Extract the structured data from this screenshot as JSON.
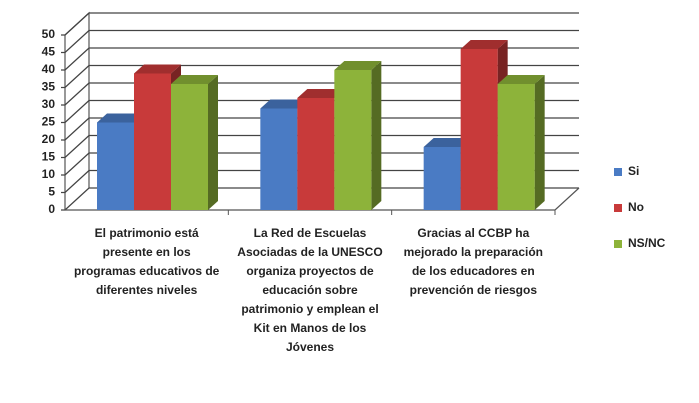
{
  "chart_data": {
    "type": "bar3d",
    "categories": [
      "El patrimonio está presente en los programas educativos de diferentes niveles",
      "La Red de Escuelas Asociadas de la UNESCO organiza proyectos de educación sobre patrimonio y emplean el Kit  en Manos de los Jóvenes",
      "Gracias al CCBP ha mejorado la preparación de los educadores en prevención de riesgos"
    ],
    "series": [
      {
        "name": "Si",
        "color": "#4a7bc4",
        "values": [
          25,
          29,
          18
        ]
      },
      {
        "name": "No",
        "color": "#c83a3a",
        "values": [
          39,
          32,
          46
        ]
      },
      {
        "name": "NS/NC",
        "color": "#8db33a",
        "values": [
          36,
          40,
          36
        ]
      }
    ],
    "ylim": [
      0,
      50
    ],
    "yticks": [
      0,
      5,
      10,
      15,
      20,
      25,
      30,
      35,
      40,
      45,
      50
    ],
    "grid": true,
    "legend": "right"
  }
}
